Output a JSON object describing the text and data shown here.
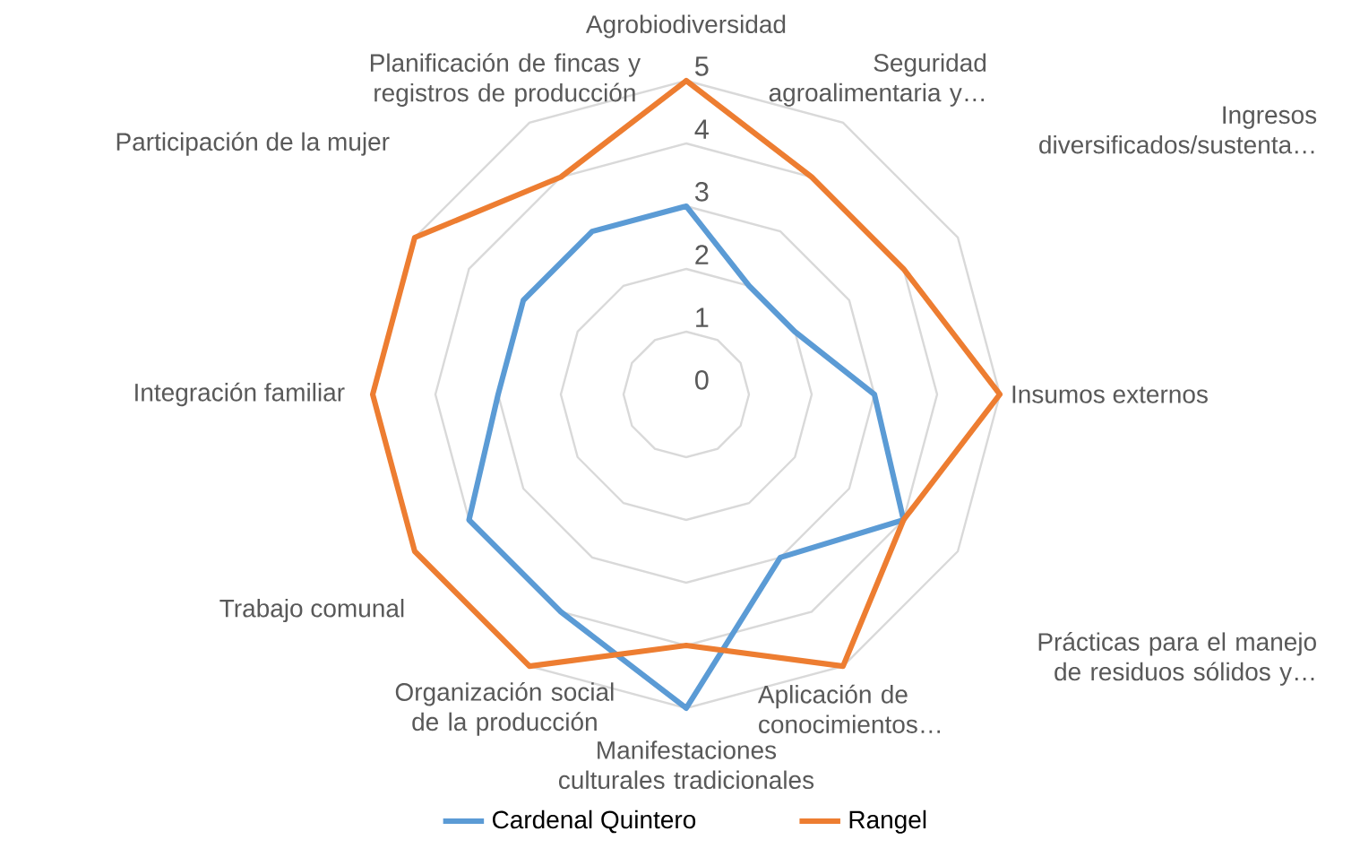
{
  "chart_data": {
    "type": "radar",
    "categories": [
      "Agrobiodiversidad",
      "Seguridad agroalimentaria y…",
      "Ingresos diversificados/sustenta…",
      "Insumos externos",
      "Prácticas para el manejo de residuos sólidos y…",
      "Aplicación de conocimientos…",
      "Manifestaciones culturales tradicionales",
      "Organización social de la producción",
      "Trabajo comunal",
      "Integración familiar",
      "Participación de la mujer",
      "Planificación de fincas y registros de producción"
    ],
    "series": [
      {
        "name": "Cardenal Quintero",
        "color": "#5b9bd5",
        "values": [
          3,
          2,
          2,
          3,
          4,
          3,
          5,
          4,
          4,
          3,
          3,
          3
        ]
      },
      {
        "name": "Rangel",
        "color": "#ed7d31",
        "values": [
          5,
          4,
          4,
          5,
          4,
          5,
          4,
          5,
          5,
          5,
          5,
          4
        ]
      }
    ],
    "ylim": [
      0,
      5
    ],
    "yticks": [
      0,
      1,
      2,
      3,
      4,
      5
    ],
    "grid": true,
    "legend": "bottom"
  }
}
